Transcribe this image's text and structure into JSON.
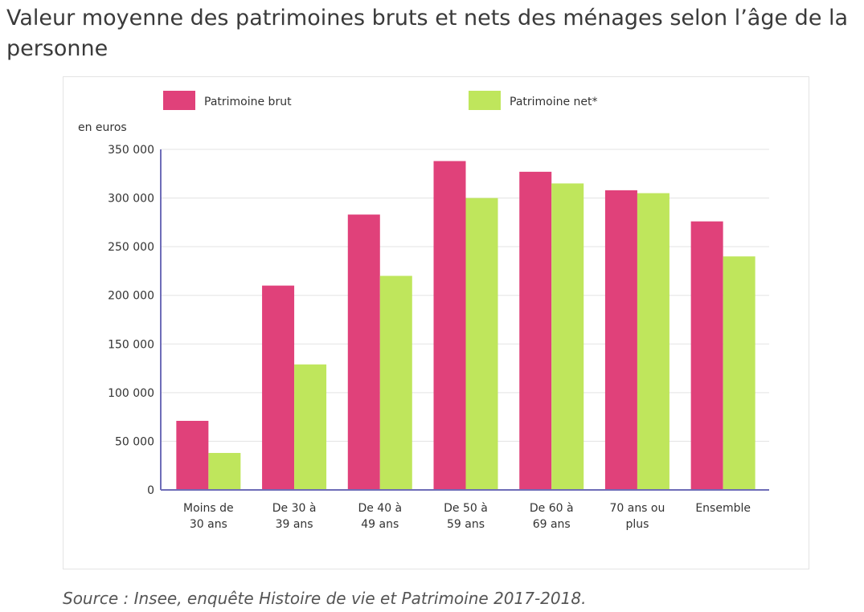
{
  "title": "Valeur moyenne des patrimoines bruts et nets des ménages selon l’âge de la personne",
  "source": "Source : Insee, enquête Histoire de vie et Patrimoine 2017-2018.",
  "chart_data": {
    "type": "bar",
    "title": "Valeur moyenne des patrimoines bruts et nets des ménages selon l’âge de la personne",
    "ylabel": "en euros",
    "xlabel": "",
    "ylim": [
      0,
      350000
    ],
    "yticks": [
      0,
      50000,
      100000,
      150000,
      200000,
      250000,
      300000,
      350000
    ],
    "ytick_labels": [
      "0",
      "50 000",
      "100 000",
      "150 000",
      "200 000",
      "250 000",
      "300 000",
      "350 000"
    ],
    "grid": true,
    "legend_position": "top",
    "categories": [
      [
        "Moins de",
        "30 ans"
      ],
      [
        "De 30 à",
        "39 ans"
      ],
      [
        "De 40 à",
        "49 ans"
      ],
      [
        "De 50 à",
        "59 ans"
      ],
      [
        "De 60 à",
        "69 ans"
      ],
      [
        "70 ans ou",
        "plus"
      ],
      [
        "Ensemble"
      ]
    ],
    "series": [
      {
        "name": "Patrimoine brut",
        "color": "#e0417a",
        "values": [
          71000,
          210000,
          283000,
          338000,
          327000,
          308000,
          276000
        ]
      },
      {
        "name": "Patrimoine net*",
        "color": "#bfe65c",
        "values": [
          38000,
          129000,
          220000,
          300000,
          315000,
          305000,
          240000
        ]
      }
    ]
  }
}
